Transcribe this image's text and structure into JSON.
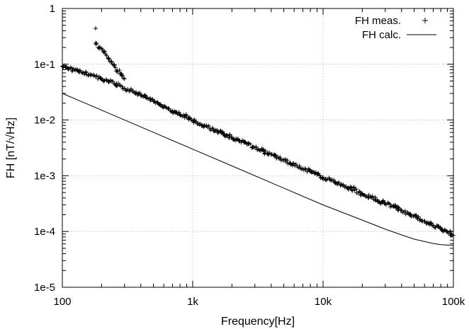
{
  "chart_data": {
    "type": "scatter",
    "title": "",
    "xlabel": "Frequency[Hz]",
    "ylabel": "FH [nT/√Hz]",
    "xscale": "log",
    "yscale": "log",
    "xlim": [
      100,
      100000
    ],
    "ylim": [
      1e-05,
      1
    ],
    "grid": true,
    "legend_position": "top-right",
    "x_ticks": [
      {
        "value": 100,
        "label": "100"
      },
      {
        "value": 1000,
        "label": "1k"
      },
      {
        "value": 10000,
        "label": "10k"
      },
      {
        "value": 100000,
        "label": "100k"
      }
    ],
    "y_ticks": [
      {
        "value": 1e-05,
        "label": "1e-5"
      },
      {
        "value": 0.0001,
        "label": "1e-4"
      },
      {
        "value": 0.001,
        "label": "1e-3"
      },
      {
        "value": 0.01,
        "label": "1e-2"
      },
      {
        "value": 0.1,
        "label": "1e-1"
      },
      {
        "value": 1,
        "label": "1"
      }
    ],
    "series": [
      {
        "name": "FH meas.",
        "style": "points",
        "marker": "plus",
        "color": "#000000",
        "x": [
          100,
          110,
          125,
          140,
          160,
          180,
          200,
          225,
          250,
          280,
          300,
          350,
          400,
          450,
          500,
          560,
          630,
          700,
          800,
          900,
          1000,
          1150,
          1300,
          1500,
          1750,
          2000,
          2300,
          2600,
          3000,
          3500,
          4000,
          4500,
          5000,
          5600,
          6300,
          7000,
          8000,
          9000,
          10000,
          11500,
          13000,
          15000,
          17500,
          20000,
          23000,
          26000,
          30000,
          35000,
          40000,
          45000,
          50000,
          56000,
          63000,
          70000,
          80000,
          90000,
          100000,
          180,
          180,
          300
        ],
        "y": [
          0.092,
          0.085,
          0.078,
          0.072,
          0.066,
          0.06,
          0.054,
          0.049,
          0.045,
          0.041,
          0.037,
          0.033,
          0.028,
          0.0245,
          0.0215,
          0.019,
          0.0165,
          0.0145,
          0.0125,
          0.011,
          0.0098,
          0.0085,
          0.0075,
          0.0065,
          0.0056,
          0.0049,
          0.0042,
          0.0037,
          0.0032,
          0.00275,
          0.0024,
          0.00215,
          0.0019,
          0.0017,
          0.0015,
          0.00135,
          0.0012,
          0.00105,
          0.00094,
          0.00082,
          0.00073,
          0.00064,
          0.00055,
          0.00048,
          0.00042,
          0.00037,
          0.00032,
          0.00028,
          0.00024,
          0.00021,
          0.00019,
          0.000165,
          0.000145,
          0.00013,
          0.000112,
          9.8e-05,
          8.5e-05,
          0.44,
          0.24,
          0.055
        ]
      },
      {
        "name": "FH calc.",
        "style": "line",
        "color": "#000000",
        "x": [
          100,
          200,
          500,
          1000,
          2000,
          5000,
          10000,
          20000,
          30000,
          40000,
          50000,
          60000,
          70000,
          80000,
          90000,
          100000
        ],
        "y": [
          0.03,
          0.015,
          0.006,
          0.003,
          0.0015,
          0.0006,
          0.0003,
          0.00016,
          0.00011,
          8.7e-05,
          7.3e-05,
          6.6e-05,
          6.1e-05,
          5.8e-05,
          5.7e-05,
          5.6e-05
        ]
      }
    ]
  }
}
